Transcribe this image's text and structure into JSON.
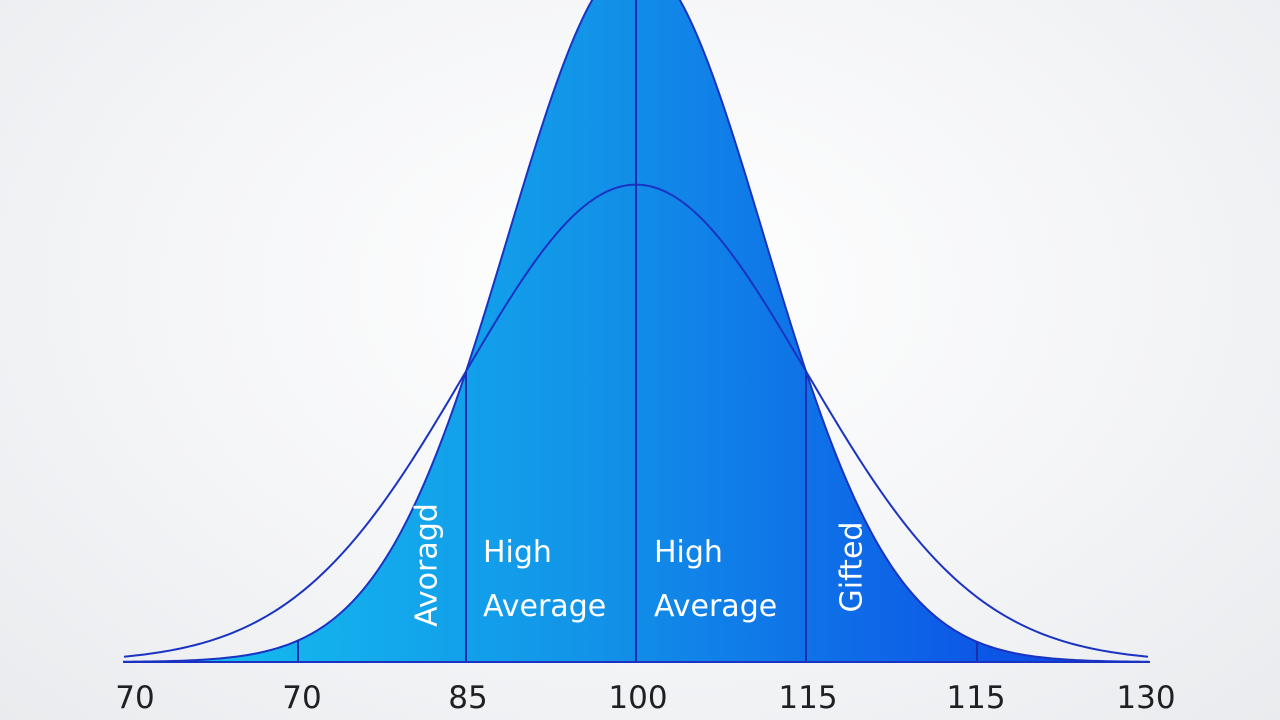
{
  "chart_data": {
    "type": "area",
    "title": "",
    "xlabel": "",
    "ylabel": "",
    "xlim": [
      70,
      130
    ],
    "tick_labels": [
      "70",
      "70",
      "85",
      "100",
      "115",
      "115",
      "130"
    ],
    "boundaries": [
      70,
      85,
      100,
      115,
      115
    ],
    "series": [
      {
        "mean": 100,
        "std": 7.5,
        "relative_peak": 1.0
      },
      {
        "mean": 100,
        "std": 10,
        "relative_peak": 0.68
      }
    ],
    "region_labels": [
      {
        "text": "Avoragd",
        "rotated": true
      },
      {
        "lines": [
          "High",
          "Average"
        ],
        "rotated": false
      },
      {
        "lines": [
          "High",
          "Average"
        ],
        "rotated": false
      },
      {
        "text": "Gifted",
        "rotated": true
      }
    ],
    "colors": {
      "fill_left": "#14c4f0",
      "fill_center": "#1294e8",
      "fill_right": "#0a3ee6",
      "outline": "#1a33c2",
      "divider": "#1a2db0",
      "tick_text": "#1f1f24",
      "label_text": "#ffffff"
    }
  }
}
